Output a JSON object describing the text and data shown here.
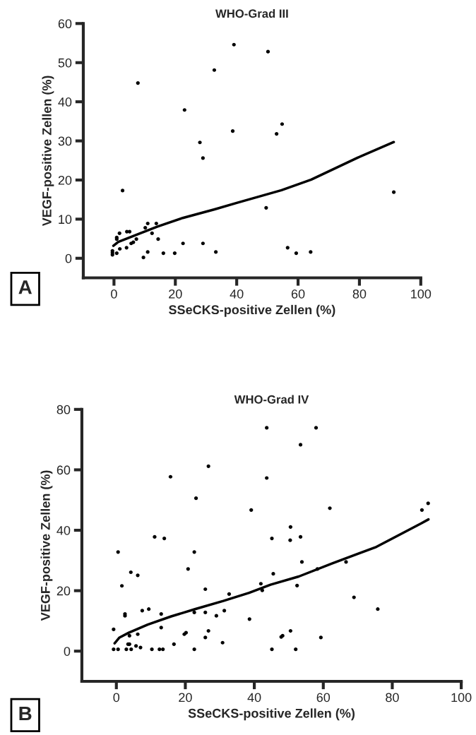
{
  "chart_data": [
    {
      "type": "scatter",
      "title": "WHO-Grad III",
      "xlabel": "SSeCKS-positive Zellen (%)",
      "ylabel": "VEGF-positive Zellen (%)",
      "xlim": [
        -10,
        100
      ],
      "ylim": [
        -5,
        60
      ],
      "xticks": [
        0,
        20,
        40,
        60,
        80,
        100
      ],
      "yticks": [
        0,
        10,
        20,
        30,
        40,
        50,
        60
      ],
      "grid": false,
      "annotations": [
        "A"
      ],
      "series": [
        {
          "marker": "circle",
          "color": "#000000",
          "x": [
            39.1,
            50.2,
            32.7,
            7.8,
            23.0,
            54.8,
            38.7,
            53.0,
            28.0,
            29.0,
            2.8,
            91.2,
            49.6,
            11.0,
            13.8,
            10.2,
            4.2,
            5.1,
            1.8,
            12.4,
            0.9,
            0.9,
            14.4,
            7.3,
            6.3,
            5.6,
            22.5,
            29.0,
            4.1,
            1.9,
            56.6,
            -0.5,
            -0.5,
            -0.5,
            0.9,
            11.0,
            16.1,
            19.8,
            33.2,
            59.4,
            64.1,
            9.6
          ],
          "values": [
            54.6,
            52.8,
            48.1,
            44.8,
            37.9,
            34.3,
            32.5,
            31.8,
            29.6,
            25.6,
            17.3,
            16.9,
            12.9,
            8.9,
            8.9,
            7.8,
            6.8,
            6.8,
            6.4,
            6.4,
            5.3,
            4.9,
            4.9,
            4.9,
            4.1,
            3.8,
            3.8,
            3.8,
            2.7,
            2.4,
            2.7,
            1.9,
            1.4,
            0.9,
            1.3,
            1.6,
            1.3,
            1.3,
            1.6,
            1.3,
            1.6,
            0.2
          ]
        },
        {
          "type": "line",
          "color": "#000000",
          "x": [
            -0.2,
            1.4,
            8.0,
            14.2,
            22.4,
            32.8,
            39.8,
            54.6,
            64.3,
            79.4,
            91.2
          ],
          "values": [
            3.2,
            4.2,
            6.2,
            8.1,
            10.3,
            12.5,
            14.1,
            17.4,
            20.1,
            25.7,
            29.7
          ]
        }
      ]
    },
    {
      "type": "scatter",
      "title": "WHO-Grad IV",
      "xlabel": "SSeCKS-positive Zellen (%)",
      "ylabel": "VEGF-positive Zellen (%)",
      "xlim": [
        -10,
        100
      ],
      "ylim": [
        -10,
        80
      ],
      "xticks": [
        0,
        20,
        40,
        60,
        80,
        100
      ],
      "yticks": [
        0,
        20,
        40,
        60,
        80
      ],
      "grid": false,
      "annotations": [
        "B"
      ],
      "series": [
        {
          "marker": "circle",
          "color": "#000000",
          "x": [
            43.6,
            26.7,
            15.7,
            43.6,
            23.1,
            39.1,
            11.1,
            13.9,
            45.1,
            0.5,
            22.6,
            4.2,
            6.2,
            45.5,
            20.8,
            1.6,
            25.8,
            41.9,
            42.3,
            32.7,
            2.5,
            2.5,
            7.5,
            9.4,
            13.0,
            22.6,
            25.8,
            29.0,
            31.3,
            38.6,
            -0.8,
            13.0,
            3.8,
            6.2,
            19.7,
            20.2,
            26.7,
            25.8,
            3.4,
            3.8,
            5.7,
            7.0,
            16.7,
            30.8,
            -0.8,
            0.5,
            2.9,
            4.3,
            10.3,
            12.5,
            13.5,
            22.6,
            45.1,
            57.9,
            53.4,
            61.9,
            88.6,
            90.4,
            50.5,
            50.4,
            53.4,
            53.8,
            58.3,
            66.6,
            52.4,
            68.9,
            75.8,
            47.8,
            48.2,
            50.5,
            59.3,
            52.0
          ],
          "values": [
            73.9,
            61.2,
            57.7,
            57.3,
            50.6,
            46.7,
            37.8,
            37.3,
            37.3,
            32.8,
            32.8,
            26.1,
            25.1,
            25.6,
            27.2,
            21.6,
            20.5,
            22.3,
            20.1,
            18.9,
            12.3,
            11.7,
            13.4,
            13.9,
            12.3,
            12.8,
            12.8,
            11.7,
            13.4,
            10.6,
            7.2,
            7.8,
            5.1,
            5.6,
            5.6,
            6.1,
            6.7,
            4.5,
            2.3,
            2.3,
            1.7,
            1.2,
            2.3,
            2.8,
            0.6,
            0.6,
            0.6,
            0.6,
            0.6,
            0.6,
            0.6,
            0.6,
            0.6,
            73.9,
            68.3,
            47.3,
            46.7,
            48.9,
            41.1,
            36.7,
            37.8,
            29.5,
            27.2,
            29.5,
            21.7,
            17.8,
            13.9,
            4.7,
            5.1,
            6.7,
            4.5,
            0.6
          ]
        },
        {
          "type": "line",
          "color": "#000000",
          "x": [
            -0.5,
            0.9,
            3.6,
            9.1,
            15.9,
            22.8,
            31.0,
            38.5,
            44.7,
            52.9,
            62.5,
            75.4,
            88.4,
            90.5
          ],
          "values": [
            2.6,
            4.5,
            6.1,
            8.8,
            11.5,
            13.9,
            16.6,
            19.3,
            22.0,
            24.7,
            29.0,
            34.5,
            42.3,
            43.6
          ]
        }
      ]
    }
  ]
}
